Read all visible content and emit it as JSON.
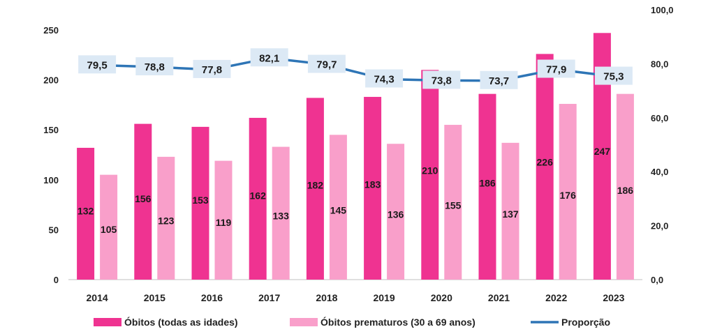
{
  "chart_data": {
    "type": "bar",
    "categories": [
      "2014",
      "2015",
      "2016",
      "2017",
      "2018",
      "2019",
      "2020",
      "2021",
      "2022",
      "2023"
    ],
    "series": [
      {
        "name": "Óbitos (todas as idades)",
        "type": "bar",
        "axis": "left",
        "color": "#ef3391",
        "values": [
          132,
          156,
          153,
          162,
          182,
          183,
          210,
          186,
          226,
          247
        ],
        "labels": [
          "132",
          "156",
          "153",
          "162",
          "182",
          "183",
          "210",
          "186",
          "226",
          "247"
        ]
      },
      {
        "name": "Óbitos prematuros (30 a 69 anos)",
        "type": "bar",
        "axis": "left",
        "color": "#f99fca",
        "values": [
          105,
          123,
          119,
          133,
          145,
          136,
          155,
          137,
          176,
          186
        ],
        "labels": [
          "105",
          "123",
          "119",
          "133",
          "145",
          "136",
          "155",
          "137",
          "176",
          "186"
        ]
      },
      {
        "name": "Proporção",
        "type": "line",
        "axis": "right",
        "color": "#2e75b6",
        "values": [
          79.5,
          78.8,
          77.8,
          82.1,
          79.7,
          74.3,
          73.8,
          73.7,
          77.9,
          75.3
        ],
        "labels": [
          "79,5",
          "78,8",
          "77,8",
          "82,1",
          "79,7",
          "74,3",
          "73,8",
          "73,7",
          "77,9",
          "75,3"
        ]
      }
    ],
    "y_left": {
      "range": [
        0,
        250
      ],
      "ticks": [
        0,
        50,
        100,
        150,
        200,
        250
      ],
      "tick_labels": [
        "0",
        "50",
        "100",
        "150",
        "200",
        "250"
      ]
    },
    "y_right": {
      "range": [
        0,
        100
      ],
      "ticks": [
        0,
        20,
        40,
        60,
        80,
        100
      ],
      "tick_labels": [
        "0,0",
        "20,0",
        "40,0",
        "60,0",
        "80,0",
        "100,0"
      ]
    },
    "grid": false,
    "legend": "bottom",
    "label_box_color": "#dce9f5"
  }
}
